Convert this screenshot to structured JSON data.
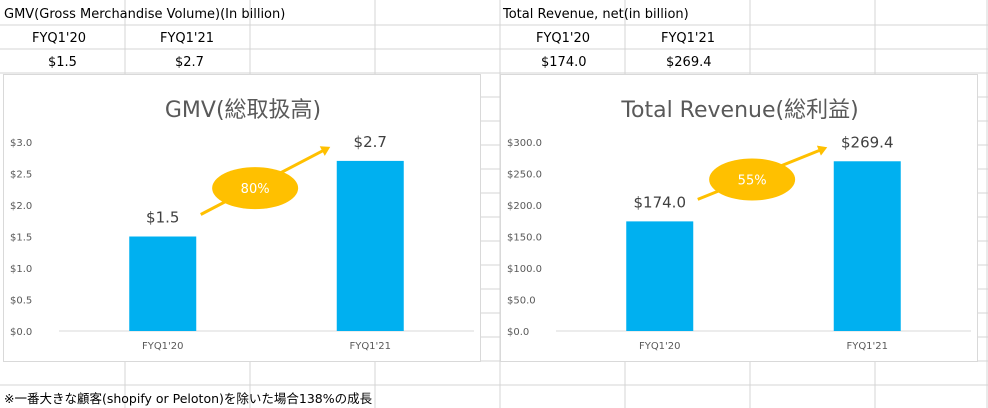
{
  "table": {
    "gmv_header": "GMV(Gross Merchandise Volume)(In billion)",
    "rev_header": "Total Revenue, net(in billion)",
    "gmv_col1": "FYQ1'20",
    "gmv_col2": "FYQ1'21",
    "gmv_val1": "$1.5",
    "gmv_val2": "$2.7",
    "rev_col1": "FYQ1'20",
    "rev_col2": "FYQ1'21",
    "rev_val1": "$174.0",
    "rev_val2": "$269.4"
  },
  "chart_data": [
    {
      "type": "bar",
      "title": "GMV(総取扱高)",
      "categories": [
        "FYQ1'20",
        "FYQ1'21"
      ],
      "values": [
        1.5,
        2.7
      ],
      "data_labels": [
        "$1.5",
        "$2.7"
      ],
      "ylim": [
        0,
        3.0
      ],
      "yticks": [
        "$0.0",
        "$0.5",
        "$1.0",
        "$1.5",
        "$2.0",
        "$2.5",
        "$3.0"
      ],
      "growth_label": "80%",
      "bar_color": "#00B0F0",
      "accent_color": "#FFC000",
      "grid": false
    },
    {
      "type": "bar",
      "title": "Total Revenue(総利益)",
      "categories": [
        "FYQ1'20",
        "FYQ1'21"
      ],
      "values": [
        174.0,
        269.4
      ],
      "data_labels": [
        "$174.0",
        "$269.4"
      ],
      "ylim": [
        0,
        300
      ],
      "yticks": [
        "$0.0",
        "$50.0",
        "$100.0",
        "$150.0",
        "$200.0",
        "$250.0",
        "$300.0"
      ],
      "growth_label": "55%",
      "bar_color": "#00B0F0",
      "accent_color": "#FFC000",
      "grid": false
    }
  ],
  "footnote": "※一番大きな顧客(shopify or Peloton)を除いた場合138%の成長"
}
